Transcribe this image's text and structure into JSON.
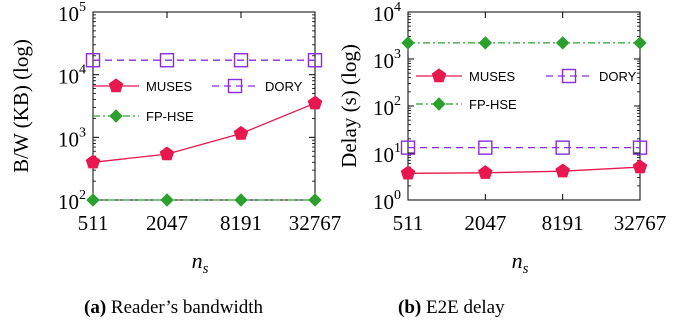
{
  "chart_data": [
    {
      "type": "line",
      "panel_label": "(a)",
      "caption": "Reader’s bandwidth",
      "ylabel": "B/W (KB) (log)",
      "xlabel_base": "n",
      "xlabel_sub": "s",
      "y_scale": "log",
      "ylim": [
        100,
        100000
      ],
      "y_tick_exponents": [
        "2",
        "3",
        "4",
        "5"
      ],
      "y_tick_base": "10",
      "categories": [
        "511",
        "2047",
        "8191",
        "32767"
      ],
      "grid": false,
      "legend": "upper-middle",
      "series": [
        {
          "name": "MUSES",
          "values": [
            400,
            540,
            1150,
            3500
          ],
          "color": "#e8174d",
          "marker": "pentagon",
          "dash": "solid"
        },
        {
          "name": "DORY",
          "values": [
            17000,
            17000,
            17000,
            17000
          ],
          "color": "#8a2be2",
          "marker": "square",
          "dash": "dashed"
        },
        {
          "name": "FP-HSE",
          "values": [
            100,
            100,
            100,
            100
          ],
          "color": "#2ca02c",
          "marker": "diamond",
          "dash": "dashdot"
        }
      ]
    },
    {
      "type": "line",
      "panel_label": "(b)",
      "caption": "E2E delay",
      "ylabel": "Delay (s) (log)",
      "xlabel_base": "n",
      "xlabel_sub": "s",
      "y_scale": "log",
      "ylim": [
        1,
        10000
      ],
      "y_tick_exponents": [
        "0",
        "1",
        "2",
        "3",
        "4"
      ],
      "y_tick_base": "10",
      "categories": [
        "511",
        "2047",
        "8191",
        "32767"
      ],
      "grid": false,
      "legend": "upper-middle",
      "series": [
        {
          "name": "MUSES",
          "values": [
            3.7,
            3.8,
            4.1,
            5.0
          ],
          "color": "#e8174d",
          "marker": "pentagon",
          "dash": "solid"
        },
        {
          "name": "DORY",
          "values": [
            13,
            13,
            13,
            13
          ],
          "color": "#8a2be2",
          "marker": "square",
          "dash": "dashed"
        },
        {
          "name": "FP-HSE",
          "values": [
            2200,
            2200,
            2200,
            2200
          ],
          "color": "#2ca02c",
          "marker": "diamond",
          "dash": "dashdot"
        }
      ]
    }
  ]
}
